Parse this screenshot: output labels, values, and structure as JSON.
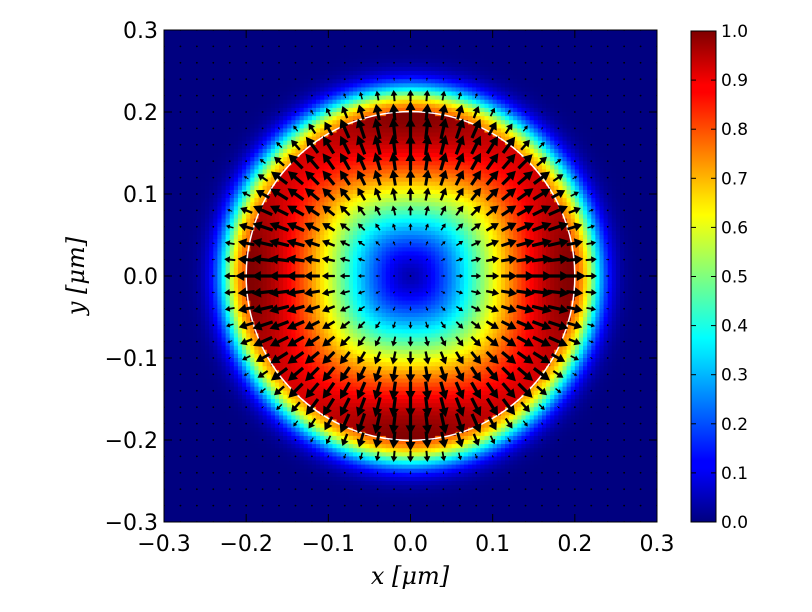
{
  "chart_data": {
    "type": "heatmap",
    "title": "",
    "xlabel": "x [μm]",
    "ylabel": "y [μm]",
    "xlim": [
      -0.3,
      0.3
    ],
    "ylim": [
      -0.3,
      0.3
    ],
    "x_ticks": [
      "−0.3",
      "−0.2",
      "−0.1",
      "0.0",
      "0.1",
      "0.2",
      "0.3"
    ],
    "y_ticks": [
      "−0.3",
      "−0.2",
      "−0.1",
      "0.0",
      "0.1",
      "0.2",
      "0.3"
    ],
    "colormap": "jet",
    "colorbar_range": [
      0.0,
      1.0
    ],
    "colorbar_ticks": [
      "0.0",
      "0.1",
      "0.2",
      "0.3",
      "0.4",
      "0.5",
      "0.6",
      "0.7",
      "0.8",
      "0.9",
      "1.0"
    ],
    "field": {
      "description": "|E| of a radially-outward vector field inside a disk",
      "disk_radius": 0.2,
      "max_value": 1.0,
      "center_value": 0.05
    },
    "quiver": {
      "grid_spacing": 0.02,
      "direction": "radially outward",
      "color": "#000000"
    },
    "boundary_circle": {
      "center": [
        0.0,
        0.0
      ],
      "radius": 0.2,
      "color": "#ffffff"
    },
    "grid": false
  }
}
